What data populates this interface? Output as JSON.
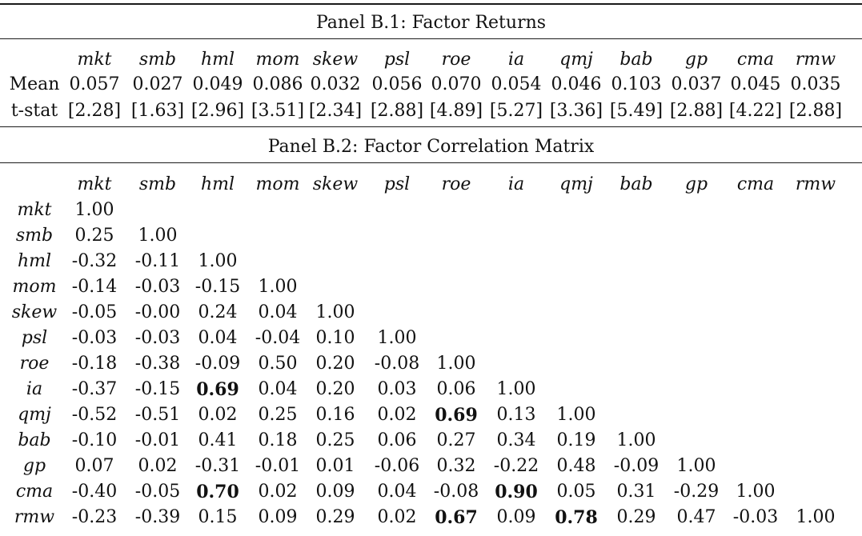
{
  "panel_b1": {
    "title": "Panel B.1: Factor Returns",
    "headers": [
      "mkt",
      "smb",
      "hml",
      "mom",
      "skew",
      "psl",
      "roe",
      "ia",
      "qmj",
      "bab",
      "gp",
      "cma",
      "rmw"
    ],
    "rows": [
      {
        "label": "Mean",
        "values": [
          "0.057",
          "0.027",
          "0.049",
          "0.086",
          "0.032",
          "0.056",
          "0.070",
          "0.054",
          "0.046",
          "0.103",
          "0.037",
          "0.045",
          "0.035"
        ]
      },
      {
        "label": "t-stat",
        "values": [
          "[2.28]",
          "[1.63]",
          "[2.96]",
          "[3.51]",
          "[2.34]",
          "[2.88]",
          "[4.89]",
          "[5.27]",
          "[3.36]",
          "[5.49]",
          "[2.88]",
          "[4.22]",
          "[2.88]"
        ]
      }
    ]
  },
  "panel_b2": {
    "title": "Panel B.2: Factor Correlation Matrix",
    "headers": [
      "mkt",
      "smb",
      "hml",
      "mom",
      "skew",
      "psl",
      "roe",
      "ia",
      "qmj",
      "bab",
      "gp",
      "cma",
      "rmw"
    ],
    "rows": [
      {
        "label": "mkt",
        "values": [
          "1.00"
        ]
      },
      {
        "label": "smb",
        "values": [
          "0.25",
          "1.00"
        ]
      },
      {
        "label": "hml",
        "values": [
          "-0.32",
          "-0.11",
          "1.00"
        ]
      },
      {
        "label": "mom",
        "values": [
          "-0.14",
          "-0.03",
          "-0.15",
          "1.00"
        ]
      },
      {
        "label": "skew",
        "values": [
          "-0.05",
          "-0.00",
          "0.24",
          "0.04",
          "1.00"
        ]
      },
      {
        "label": "psl",
        "values": [
          "-0.03",
          "-0.03",
          "0.04",
          "-0.04",
          "0.10",
          "1.00"
        ]
      },
      {
        "label": "roe",
        "values": [
          "-0.18",
          "-0.38",
          "-0.09",
          "0.50",
          "0.20",
          "-0.08",
          "1.00"
        ]
      },
      {
        "label": "ia",
        "values": [
          "-0.37",
          "-0.15",
          "0.69",
          "0.04",
          "0.20",
          "0.03",
          "0.06",
          "1.00"
        ]
      },
      {
        "label": "qmj",
        "values": [
          "-0.52",
          "-0.51",
          "0.02",
          "0.25",
          "0.16",
          "0.02",
          "0.69",
          "0.13",
          "1.00"
        ]
      },
      {
        "label": "bab",
        "values": [
          "-0.10",
          "-0.01",
          "0.41",
          "0.18",
          "0.25",
          "0.06",
          "0.27",
          "0.34",
          "0.19",
          "1.00"
        ]
      },
      {
        "label": "gp",
        "values": [
          "0.07",
          "0.02",
          "-0.31",
          "-0.01",
          "0.01",
          "-0.06",
          "0.32",
          "-0.22",
          "0.48",
          "-0.09",
          "1.00"
        ]
      },
      {
        "label": "cma",
        "values": [
          "-0.40",
          "-0.05",
          "0.70",
          "0.02",
          "0.09",
          "0.04",
          "-0.08",
          "0.90",
          "0.05",
          "0.31",
          "-0.29",
          "1.00"
        ]
      },
      {
        "label": "rmw",
        "values": [
          "-0.23",
          "-0.39",
          "0.15",
          "0.09",
          "0.29",
          "0.02",
          "0.67",
          "0.09",
          "0.78",
          "0.29",
          "0.47",
          "-0.03",
          "1.00"
        ]
      }
    ],
    "bold_cells": [
      [
        7,
        2
      ],
      [
        8,
        6
      ],
      [
        11,
        2
      ],
      [
        11,
        7
      ],
      [
        12,
        6
      ],
      [
        12,
        8
      ]
    ]
  }
}
